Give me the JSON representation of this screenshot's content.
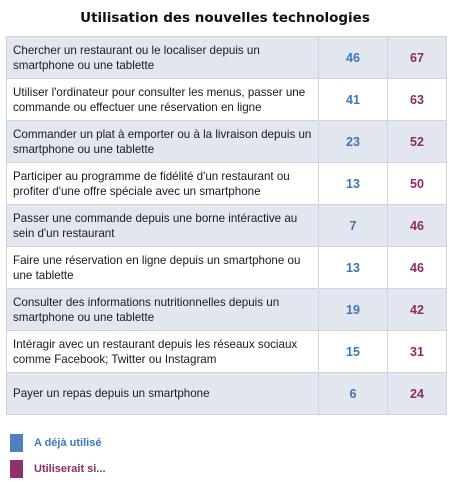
{
  "chart_data": {
    "type": "table",
    "title": "Utilisation des nouvelles technologies",
    "series": [
      {
        "name": "A déjà utilisé",
        "color": "#3b78b7",
        "values": [
          46,
          41,
          23,
          13,
          7,
          13,
          19,
          15,
          6
        ]
      },
      {
        "name": "Utiliserait si...",
        "color": "#8d2c63",
        "values": [
          67,
          63,
          52,
          50,
          46,
          46,
          42,
          31,
          24
        ]
      }
    ],
    "categories": [
      "Chercher un restaurant ou le localiser depuis un smartphone ou une tablette",
      "Utiliser l'ordinateur pour consulter les menus, passer une commande ou effectuer une réservation en ligne",
      "Commander un plat à emporter ou à la livraison depuis un smartphone ou une tablette",
      "Participer au programme de fidélité d'un restaurant ou profiter d'une offre spéciale avec un smartphone",
      "Passer une commande depuis une borne interactive au sein d'un restaurant",
      "Faire une réservation en ligne depuis un smartphone ou une tablette",
      "Consulter des informations nutritionnelles depuis un smartphone ou une tablette",
      "Intéragir avec un restaurant depuis les réseaux sociaux comme Facebook; Twitter ou Instagram",
      "Payer un repas depuis un smartphone"
    ]
  },
  "rows": [
    {
      "label": "Chercher un restaurant ou le localiser depuis un smartphone ou une tablette",
      "used": "46",
      "would": "67"
    },
    {
      "label": "Utiliser l'ordinateur pour consulter les menus, passer une commande ou effectuer une réservation en ligne",
      "used": "41",
      "would": "63"
    },
    {
      "label": "Commander un plat à emporter ou à la livraison depuis un smartphone ou une tablette",
      "used": "23",
      "would": "52"
    },
    {
      "label": "Participer au programme de fidélité d'un restaurant ou profiter d'une offre spéciale avec un smartphone",
      "used": "13",
      "would": "50"
    },
    {
      "label": "Passer une commande depuis une borne intéractive au sein d'un restaurant",
      "used": "7",
      "would": "46"
    },
    {
      "label": "Faire une réservation en ligne depuis un smartphone ou une tablette",
      "used": "13",
      "would": "46"
    },
    {
      "label": "Consulter des informations nutritionnelles depuis un smartphone ou une tablette",
      "used": "19",
      "would": "42"
    },
    {
      "label": "Intéragir avec un restaurant depuis les réseaux sociaux comme Facebook; Twitter ou Instagram",
      "used": "15",
      "would": "31"
    },
    {
      "label": "Payer un repas depuis un smartphone",
      "used": "6",
      "would": "24"
    }
  ],
  "legend": {
    "used_label": "A déjà utilisé",
    "would_label": "Utiliserait si..."
  }
}
